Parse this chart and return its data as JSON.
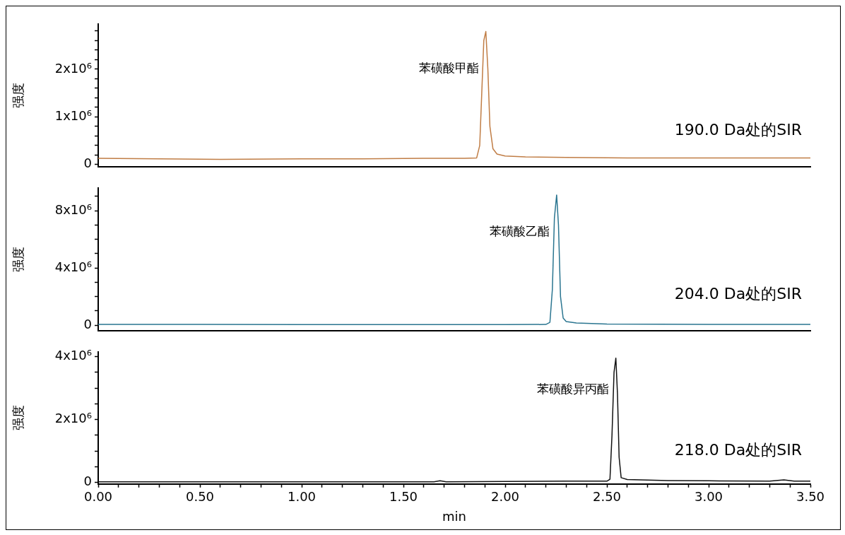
{
  "chart_data": [
    {
      "type": "line",
      "ylabel": "强度",
      "tick_labels": "y",
      "marker": "none",
      "line_style": "solid",
      "grid": false,
      "legend": false,
      "xlim": [
        0,
        3.5
      ],
      "ylim": [
        -50000,
        2950000
      ],
      "yticks": [
        {
          "value": 0,
          "label": "0"
        },
        {
          "value": 200000,
          "label": null
        },
        {
          "value": 400000,
          "label": null
        },
        {
          "value": 600000,
          "label": null
        },
        {
          "value": 800000,
          "label": null
        },
        {
          "value": 1000000,
          "label": "1x10⁶"
        },
        {
          "value": 1200000,
          "label": null
        },
        {
          "value": 1400000,
          "label": null
        },
        {
          "value": 1600000,
          "label": null
        },
        {
          "value": 1800000,
          "label": null
        },
        {
          "value": 2000000,
          "label": "2x10⁶"
        },
        {
          "value": 2200000,
          "label": null
        },
        {
          "value": 2400000,
          "label": null
        },
        {
          "value": 2600000,
          "label": null
        },
        {
          "value": 2800000,
          "label": null
        }
      ],
      "series": [
        {
          "color": "#c07d45",
          "x": [
            0,
            0.3,
            0.6,
            1.0,
            1.3,
            1.6,
            1.8,
            1.86,
            1.875,
            1.885,
            1.895,
            1.905,
            1.915,
            1.925,
            1.94,
            1.96,
            2.0,
            2.1,
            2.3,
            2.6,
            3.0,
            3.3,
            3.5
          ],
          "values": [
            130000,
            120000,
            110000,
            120000,
            120000,
            130000,
            130000,
            140000,
            400000,
            1500000,
            2600000,
            2790000,
            2000000,
            800000,
            330000,
            220000,
            180000,
            160000,
            150000,
            140000,
            140000,
            140000,
            140000
          ]
        }
      ],
      "annotations": [
        {
          "text": "苯磺酸甲酯",
          "x": 1.905,
          "y": 2000000
        },
        "190.0 Da处的SIR"
      ]
    },
    {
      "type": "line",
      "ylabel": "强度",
      "tick_labels": "y",
      "marker": "none",
      "line_style": "solid",
      "grid": false,
      "legend": false,
      "xlim": [
        0,
        3.5
      ],
      "ylim": [
        -400000,
        9600000
      ],
      "yticks": [
        {
          "value": 0,
          "label": "0"
        },
        {
          "value": 1000000,
          "label": null
        },
        {
          "value": 2000000,
          "label": null
        },
        {
          "value": 3000000,
          "label": null
        },
        {
          "value": 4000000,
          "label": "4x10⁶"
        },
        {
          "value": 5000000,
          "label": null
        },
        {
          "value": 6000000,
          "label": null
        },
        {
          "value": 7000000,
          "label": null
        },
        {
          "value": 8000000,
          "label": "8x10⁶"
        },
        {
          "value": 9000000,
          "label": null
        }
      ],
      "series": [
        {
          "color": "#2a7590",
          "x": [
            0,
            0.5,
            1.0,
            1.5,
            2.0,
            2.2,
            2.22,
            2.232,
            2.242,
            2.253,
            2.262,
            2.272,
            2.285,
            2.3,
            2.35,
            2.5,
            3.0,
            3.5
          ],
          "values": [
            50000,
            50000,
            40000,
            40000,
            40000,
            50000,
            200000,
            2500000,
            7500000,
            9100000,
            7000000,
            2000000,
            500000,
            250000,
            150000,
            80000,
            60000,
            50000
          ]
        }
      ],
      "annotations": [
        {
          "text": "苯磺酸乙酯",
          "x": 2.253,
          "y": 6500000
        },
        "204.0 Da处的SIR"
      ]
    },
    {
      "type": "line",
      "ylabel": "强度",
      "xlabel": "min",
      "marker": "none",
      "line_style": "solid",
      "grid": false,
      "legend": false,
      "xlim": [
        0,
        3.5
      ],
      "ylim": [
        -50000,
        4150000
      ],
      "xticks": [
        {
          "value": 0,
          "label": "0.00"
        },
        {
          "value": 0.1,
          "label": null
        },
        {
          "value": 0.2,
          "label": null
        },
        {
          "value": 0.3,
          "label": null
        },
        {
          "value": 0.4,
          "label": null
        },
        {
          "value": 0.5,
          "label": "0.50"
        },
        {
          "value": 0.6,
          "label": null
        },
        {
          "value": 0.7,
          "label": null
        },
        {
          "value": 0.8,
          "label": null
        },
        {
          "value": 0.9,
          "label": null
        },
        {
          "value": 1,
          "label": "1.00"
        },
        {
          "value": 1.1,
          "label": null
        },
        {
          "value": 1.2,
          "label": null
        },
        {
          "value": 1.3,
          "label": null
        },
        {
          "value": 1.4,
          "label": null
        },
        {
          "value": 1.5,
          "label": "1.50"
        },
        {
          "value": 1.6,
          "label": null
        },
        {
          "value": 1.7,
          "label": null
        },
        {
          "value": 1.8,
          "label": null
        },
        {
          "value": 1.9,
          "label": null
        },
        {
          "value": 2,
          "label": "2.00"
        },
        {
          "value": 2.1,
          "label": null
        },
        {
          "value": 2.2,
          "label": null
        },
        {
          "value": 2.3,
          "label": null
        },
        {
          "value": 2.4,
          "label": null
        },
        {
          "value": 2.5,
          "label": "2.50"
        },
        {
          "value": 2.6,
          "label": null
        },
        {
          "value": 2.7,
          "label": null
        },
        {
          "value": 2.8,
          "label": null
        },
        {
          "value": 2.9,
          "label": null
        },
        {
          "value": 3,
          "label": "3.00"
        },
        {
          "value": 3.1,
          "label": null
        },
        {
          "value": 3.2,
          "label": null
        },
        {
          "value": 3.3,
          "label": null
        },
        {
          "value": 3.4,
          "label": null
        },
        {
          "value": 3.5,
          "label": "3.50"
        }
      ],
      "yticks": [
        {
          "value": 0,
          "label": "0"
        },
        {
          "value": 500000,
          "label": null
        },
        {
          "value": 1000000,
          "label": null
        },
        {
          "value": 1500000,
          "label": null
        },
        {
          "value": 2000000,
          "label": "2x10⁶"
        },
        {
          "value": 2500000,
          "label": null
        },
        {
          "value": 3000000,
          "label": null
        },
        {
          "value": 3500000,
          "label": null
        },
        {
          "value": 4000000,
          "label": "4x10⁶"
        }
      ],
      "series": [
        {
          "color": "#111111",
          "x": [
            0,
            0.5,
            1.0,
            1.5,
            1.65,
            1.68,
            1.71,
            2.0,
            2.3,
            2.5,
            2.515,
            2.525,
            2.535,
            2.544,
            2.552,
            2.56,
            2.57,
            2.6,
            2.8,
            3.0,
            3.3,
            3.37,
            3.42,
            3.5
          ],
          "values": [
            20000,
            20000,
            20000,
            20000,
            20000,
            50000,
            20000,
            30000,
            40000,
            40000,
            100000,
            1500000,
            3500000,
            3950000,
            2800000,
            800000,
            150000,
            90000,
            60000,
            50000,
            40000,
            80000,
            40000,
            40000
          ]
        }
      ],
      "annotations": [
        {
          "text": "苯磺酸异丙酯",
          "x": 2.544,
          "y": 2950000
        },
        "218.0 Da处的SIR"
      ]
    }
  ]
}
